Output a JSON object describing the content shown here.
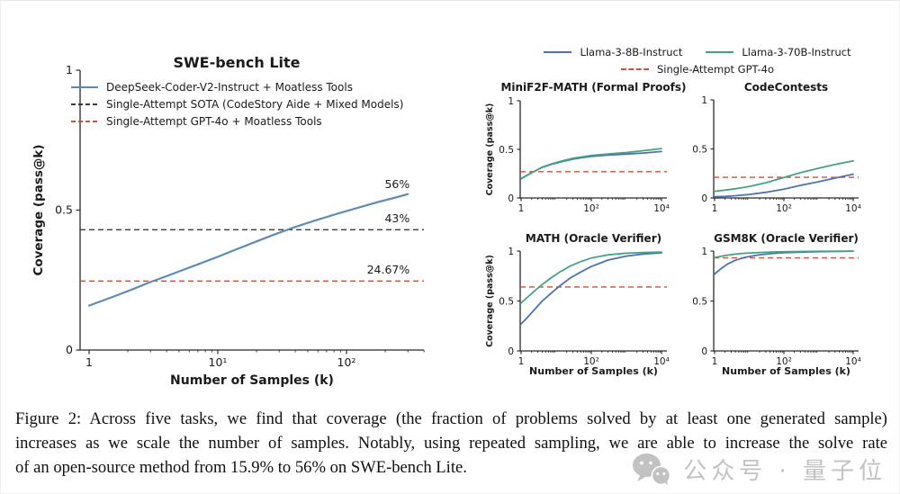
{
  "colors": {
    "swe_blue": "#5e8cb5",
    "llama8b_blue": "#4c72b0",
    "llama70b_green": "#46a184",
    "ref_red": "#cd4f3d",
    "ref_black": "#3b3b3b"
  },
  "shared_legend": {
    "rows": [
      [
        {
          "label": "Llama-3-8B-Instruct",
          "color": "#4c72b0",
          "dash": false
        },
        {
          "label": "Llama-3-70B-Instruct",
          "color": "#46a184",
          "dash": false
        }
      ],
      [
        {
          "label": "Single-Attempt GPT-4o",
          "color": "#cd4f3d",
          "dash": true
        }
      ]
    ]
  },
  "chart_data": [
    {
      "id": "swe",
      "type": "line",
      "title": "SWE-bench Lite",
      "xlabel": "Number of Samples (k)",
      "ylabel": "Coverage (pass@k)",
      "xscale": "log",
      "xlim": [
        0.85,
        400
      ],
      "ylim": [
        0,
        1
      ],
      "xticks": [
        {
          "v": 1,
          "label": "1"
        },
        {
          "v": 10,
          "label": "10¹"
        },
        {
          "v": 100,
          "label": "10²"
        }
      ],
      "yticks": [
        {
          "v": 0,
          "label": "0"
        },
        {
          "v": 0.5,
          "label": "0.5"
        },
        {
          "v": 1,
          "label": "1"
        }
      ],
      "legend": [
        {
          "label": "DeepSeek-Coder-V2-Instruct + Moatless Tools",
          "color": "#5e8cb5",
          "dash": false
        },
        {
          "label": "Single-Attempt SOTA (CodeStory Aide + Mixed Models)",
          "color": "#3b3b3b",
          "dash": true
        },
        {
          "label": "Single-Attempt GPT-4o + Moatless Tools",
          "color": "#cd4f3d",
          "dash": true
        }
      ],
      "series": [
        {
          "name": "DeepSeek-Coder-V2-Instruct + Moatless Tools",
          "color": "#5e8cb5",
          "dash": false,
          "points": [
            [
              1,
              0.159
            ],
            [
              1.3,
              0.178
            ],
            [
              1.7,
              0.198
            ],
            [
              2.2,
              0.218
            ],
            [
              3,
              0.243
            ],
            [
              4,
              0.264
            ],
            [
              5,
              0.281
            ],
            [
              7,
              0.306
            ],
            [
              10,
              0.333
            ],
            [
              14,
              0.36
            ],
            [
              20,
              0.388
            ],
            [
              28,
              0.414
            ],
            [
              40,
              0.44
            ],
            [
              60,
              0.466
            ],
            [
              85,
              0.487
            ],
            [
              120,
              0.507
            ],
            [
              170,
              0.527
            ],
            [
              240,
              0.545
            ],
            [
              300,
              0.557
            ]
          ]
        }
      ],
      "ref_lines": [
        {
          "value": 0.43,
          "color": "#3b3b3b",
          "name": "Single-Attempt SOTA"
        },
        {
          "value": 0.2467,
          "color": "#cd4f3d",
          "name": "Single-Attempt GPT-4o"
        }
      ],
      "annotations": [
        {
          "text": "56%",
          "x": 310,
          "y": 0.579,
          "color": "#5e87ad"
        },
        {
          "text": "43%",
          "x": 310,
          "y": 0.457,
          "color": "#3d3d3d"
        },
        {
          "text": "24.67%",
          "x": 310,
          "y": 0.273,
          "color": "#ce4634"
        }
      ]
    },
    {
      "id": "mini",
      "type": "line",
      "title": "MiniF2F-MATH (Formal Proofs)",
      "ylabel": "Coverage (pass@k)",
      "xscale": "log",
      "xlim": [
        0.75,
        14000
      ],
      "ylim": [
        0,
        1
      ],
      "xticks": [
        {
          "v": 1,
          "label": "1"
        },
        {
          "v": 100,
          "label": "10²"
        },
        {
          "v": 10000,
          "label": "10⁴"
        }
      ],
      "yticks": [
        {
          "v": 0,
          "label": "0"
        },
        {
          "v": 0.5,
          "label": "0.5"
        },
        {
          "v": 1,
          "label": "1"
        }
      ],
      "series": [
        {
          "name": "Llama-3-8B-Instruct",
          "color": "#4c72b0",
          "dash": false,
          "points": [
            [
              1,
              0.2
            ],
            [
              2,
              0.26
            ],
            [
              4,
              0.315
            ],
            [
              8,
              0.35
            ],
            [
              15,
              0.375
            ],
            [
              30,
              0.4
            ],
            [
              60,
              0.417
            ],
            [
              100,
              0.427
            ],
            [
              300,
              0.442
            ],
            [
              1000,
              0.452
            ],
            [
              3000,
              0.462
            ],
            [
              10000,
              0.478
            ]
          ]
        },
        {
          "name": "Llama-3-70B-Instruct",
          "color": "#46a184",
          "dash": false,
          "points": [
            [
              1,
              0.197
            ],
            [
              2,
              0.258
            ],
            [
              4,
              0.318
            ],
            [
              8,
              0.355
            ],
            [
              15,
              0.382
            ],
            [
              30,
              0.408
            ],
            [
              60,
              0.425
            ],
            [
              100,
              0.437
            ],
            [
              300,
              0.453
            ],
            [
              1000,
              0.468
            ],
            [
              3000,
              0.486
            ],
            [
              10000,
              0.508
            ]
          ]
        }
      ],
      "ref_lines": [
        {
          "value": 0.27,
          "color": "#cd4f3d",
          "name": "Single-Attempt GPT-4o"
        }
      ],
      "annotations": []
    },
    {
      "id": "cc",
      "type": "line",
      "title": "CodeContests",
      "xscale": "log",
      "xlim": [
        0.75,
        14000
      ],
      "ylim": [
        0,
        1
      ],
      "xticks": [
        {
          "v": 1,
          "label": "1"
        },
        {
          "v": 100,
          "label": "10²"
        },
        {
          "v": 10000,
          "label": "10⁴"
        }
      ],
      "yticks": [
        {
          "v": 0,
          "label": "0"
        },
        {
          "v": 0.5,
          "label": "0.5"
        },
        {
          "v": 1,
          "label": "1"
        }
      ],
      "series": [
        {
          "name": "Llama-3-8B-Instruct",
          "color": "#4c72b0",
          "dash": false,
          "points": [
            [
              1,
              0.012
            ],
            [
              2,
              0.016
            ],
            [
              4,
              0.023
            ],
            [
              10,
              0.036
            ],
            [
              30,
              0.058
            ],
            [
              100,
              0.09
            ],
            [
              300,
              0.128
            ],
            [
              1000,
              0.165
            ],
            [
              3000,
              0.203
            ],
            [
              10000,
              0.242
            ]
          ]
        },
        {
          "name": "Llama-3-70B-Instruct",
          "color": "#46a184",
          "dash": false,
          "points": [
            [
              1,
              0.068
            ],
            [
              2,
              0.08
            ],
            [
              4,
              0.094
            ],
            [
              10,
              0.117
            ],
            [
              30,
              0.155
            ],
            [
              100,
              0.208
            ],
            [
              300,
              0.258
            ],
            [
              1000,
              0.303
            ],
            [
              3000,
              0.342
            ],
            [
              10000,
              0.378
            ]
          ]
        }
      ],
      "ref_lines": [
        {
          "value": 0.21,
          "color": "#cd4f3d",
          "name": "Single-Attempt GPT-4o"
        }
      ],
      "annotations": []
    },
    {
      "id": "math",
      "type": "line",
      "title": "MATH (Oracle Verifier)",
      "xlabel": "Number of Samples (k)",
      "ylabel": "Coverage (pass@k)",
      "xscale": "log",
      "xlim": [
        0.75,
        14000
      ],
      "ylim": [
        0,
        1
      ],
      "xticks": [
        {
          "v": 1,
          "label": "1"
        },
        {
          "v": 100,
          "label": "10²"
        },
        {
          "v": 10000,
          "label": "10⁴"
        }
      ],
      "yticks": [
        {
          "v": 0,
          "label": "0"
        },
        {
          "v": 0.5,
          "label": "0.5"
        },
        {
          "v": 1,
          "label": "1"
        }
      ],
      "series": [
        {
          "name": "Llama-3-8B-Instruct",
          "color": "#4c72b0",
          "dash": false,
          "points": [
            [
              1,
              0.27
            ],
            [
              1.6,
              0.345
            ],
            [
              2.5,
              0.42
            ],
            [
              4,
              0.5
            ],
            [
              7,
              0.575
            ],
            [
              12,
              0.645
            ],
            [
              25,
              0.73
            ],
            [
              50,
              0.79
            ],
            [
              100,
              0.845
            ],
            [
              300,
              0.91
            ],
            [
              1000,
              0.95
            ],
            [
              3000,
              0.97
            ],
            [
              10000,
              0.982
            ]
          ]
        },
        {
          "name": "Llama-3-70B-Instruct",
          "color": "#46a184",
          "dash": false,
          "points": [
            [
              1,
              0.48
            ],
            [
              1.6,
              0.545
            ],
            [
              2.5,
              0.605
            ],
            [
              4,
              0.665
            ],
            [
              7,
              0.73
            ],
            [
              12,
              0.785
            ],
            [
              25,
              0.85
            ],
            [
              50,
              0.895
            ],
            [
              100,
              0.93
            ],
            [
              300,
              0.962
            ],
            [
              1000,
              0.978
            ],
            [
              3000,
              0.986
            ],
            [
              10000,
              0.99
            ]
          ]
        }
      ],
      "ref_lines": [
        {
          "value": 0.64,
          "color": "#cd4f3d",
          "name": "Single-Attempt GPT-4o"
        }
      ],
      "annotations": []
    },
    {
      "id": "gsm",
      "type": "line",
      "title": "GSM8K (Oracle Verifier)",
      "xlabel": "Number of Samples (k)",
      "xscale": "log",
      "xlim": [
        0.75,
        14000
      ],
      "ylim": [
        0,
        1
      ],
      "xticks": [
        {
          "v": 1,
          "label": "1"
        },
        {
          "v": 100,
          "label": "10²"
        },
        {
          "v": 10000,
          "label": "10⁴"
        }
      ],
      "yticks": [
        {
          "v": 0,
          "label": "0"
        },
        {
          "v": 0.5,
          "label": "0.5"
        },
        {
          "v": 1,
          "label": "1"
        }
      ],
      "series": [
        {
          "name": "Llama-3-8B-Instruct",
          "color": "#4c72b0",
          "dash": false,
          "points": [
            [
              1,
              0.77
            ],
            [
              1.6,
              0.83
            ],
            [
              2.5,
              0.875
            ],
            [
              4,
              0.908
            ],
            [
              8,
              0.94
            ],
            [
              20,
              0.963
            ],
            [
              50,
              0.977
            ],
            [
              100,
              0.984
            ],
            [
              1000,
              0.994
            ],
            [
              10000,
              0.999
            ]
          ]
        },
        {
          "name": "Llama-3-70B-Instruct",
          "color": "#46a184",
          "dash": false,
          "points": [
            [
              1,
              0.935
            ],
            [
              2,
              0.955
            ],
            [
              4,
              0.969
            ],
            [
              8,
              0.978
            ],
            [
              20,
              0.986
            ],
            [
              50,
              0.991
            ],
            [
              100,
              0.993
            ],
            [
              1000,
              0.997
            ],
            [
              10000,
              0.999
            ]
          ]
        }
      ],
      "ref_lines": [
        {
          "value": 0.932,
          "color": "#cd4f3d",
          "name": "Single-Attempt GPT-4o"
        }
      ],
      "annotations": []
    }
  ],
  "caption": {
    "lines": [
      "Figure 2: Across five tasks, we find that coverage (the fraction of problems solved by at least one generated sample)",
      "increases as we scale the number of samples. Notably, using repeated sampling, we are able to increase the solve rate",
      "of an open-source method from 15.9% to 56% on SWE-bench Lite."
    ]
  },
  "watermark": {
    "icon": "wechat-icon",
    "text": "公众号 · 量子位"
  }
}
